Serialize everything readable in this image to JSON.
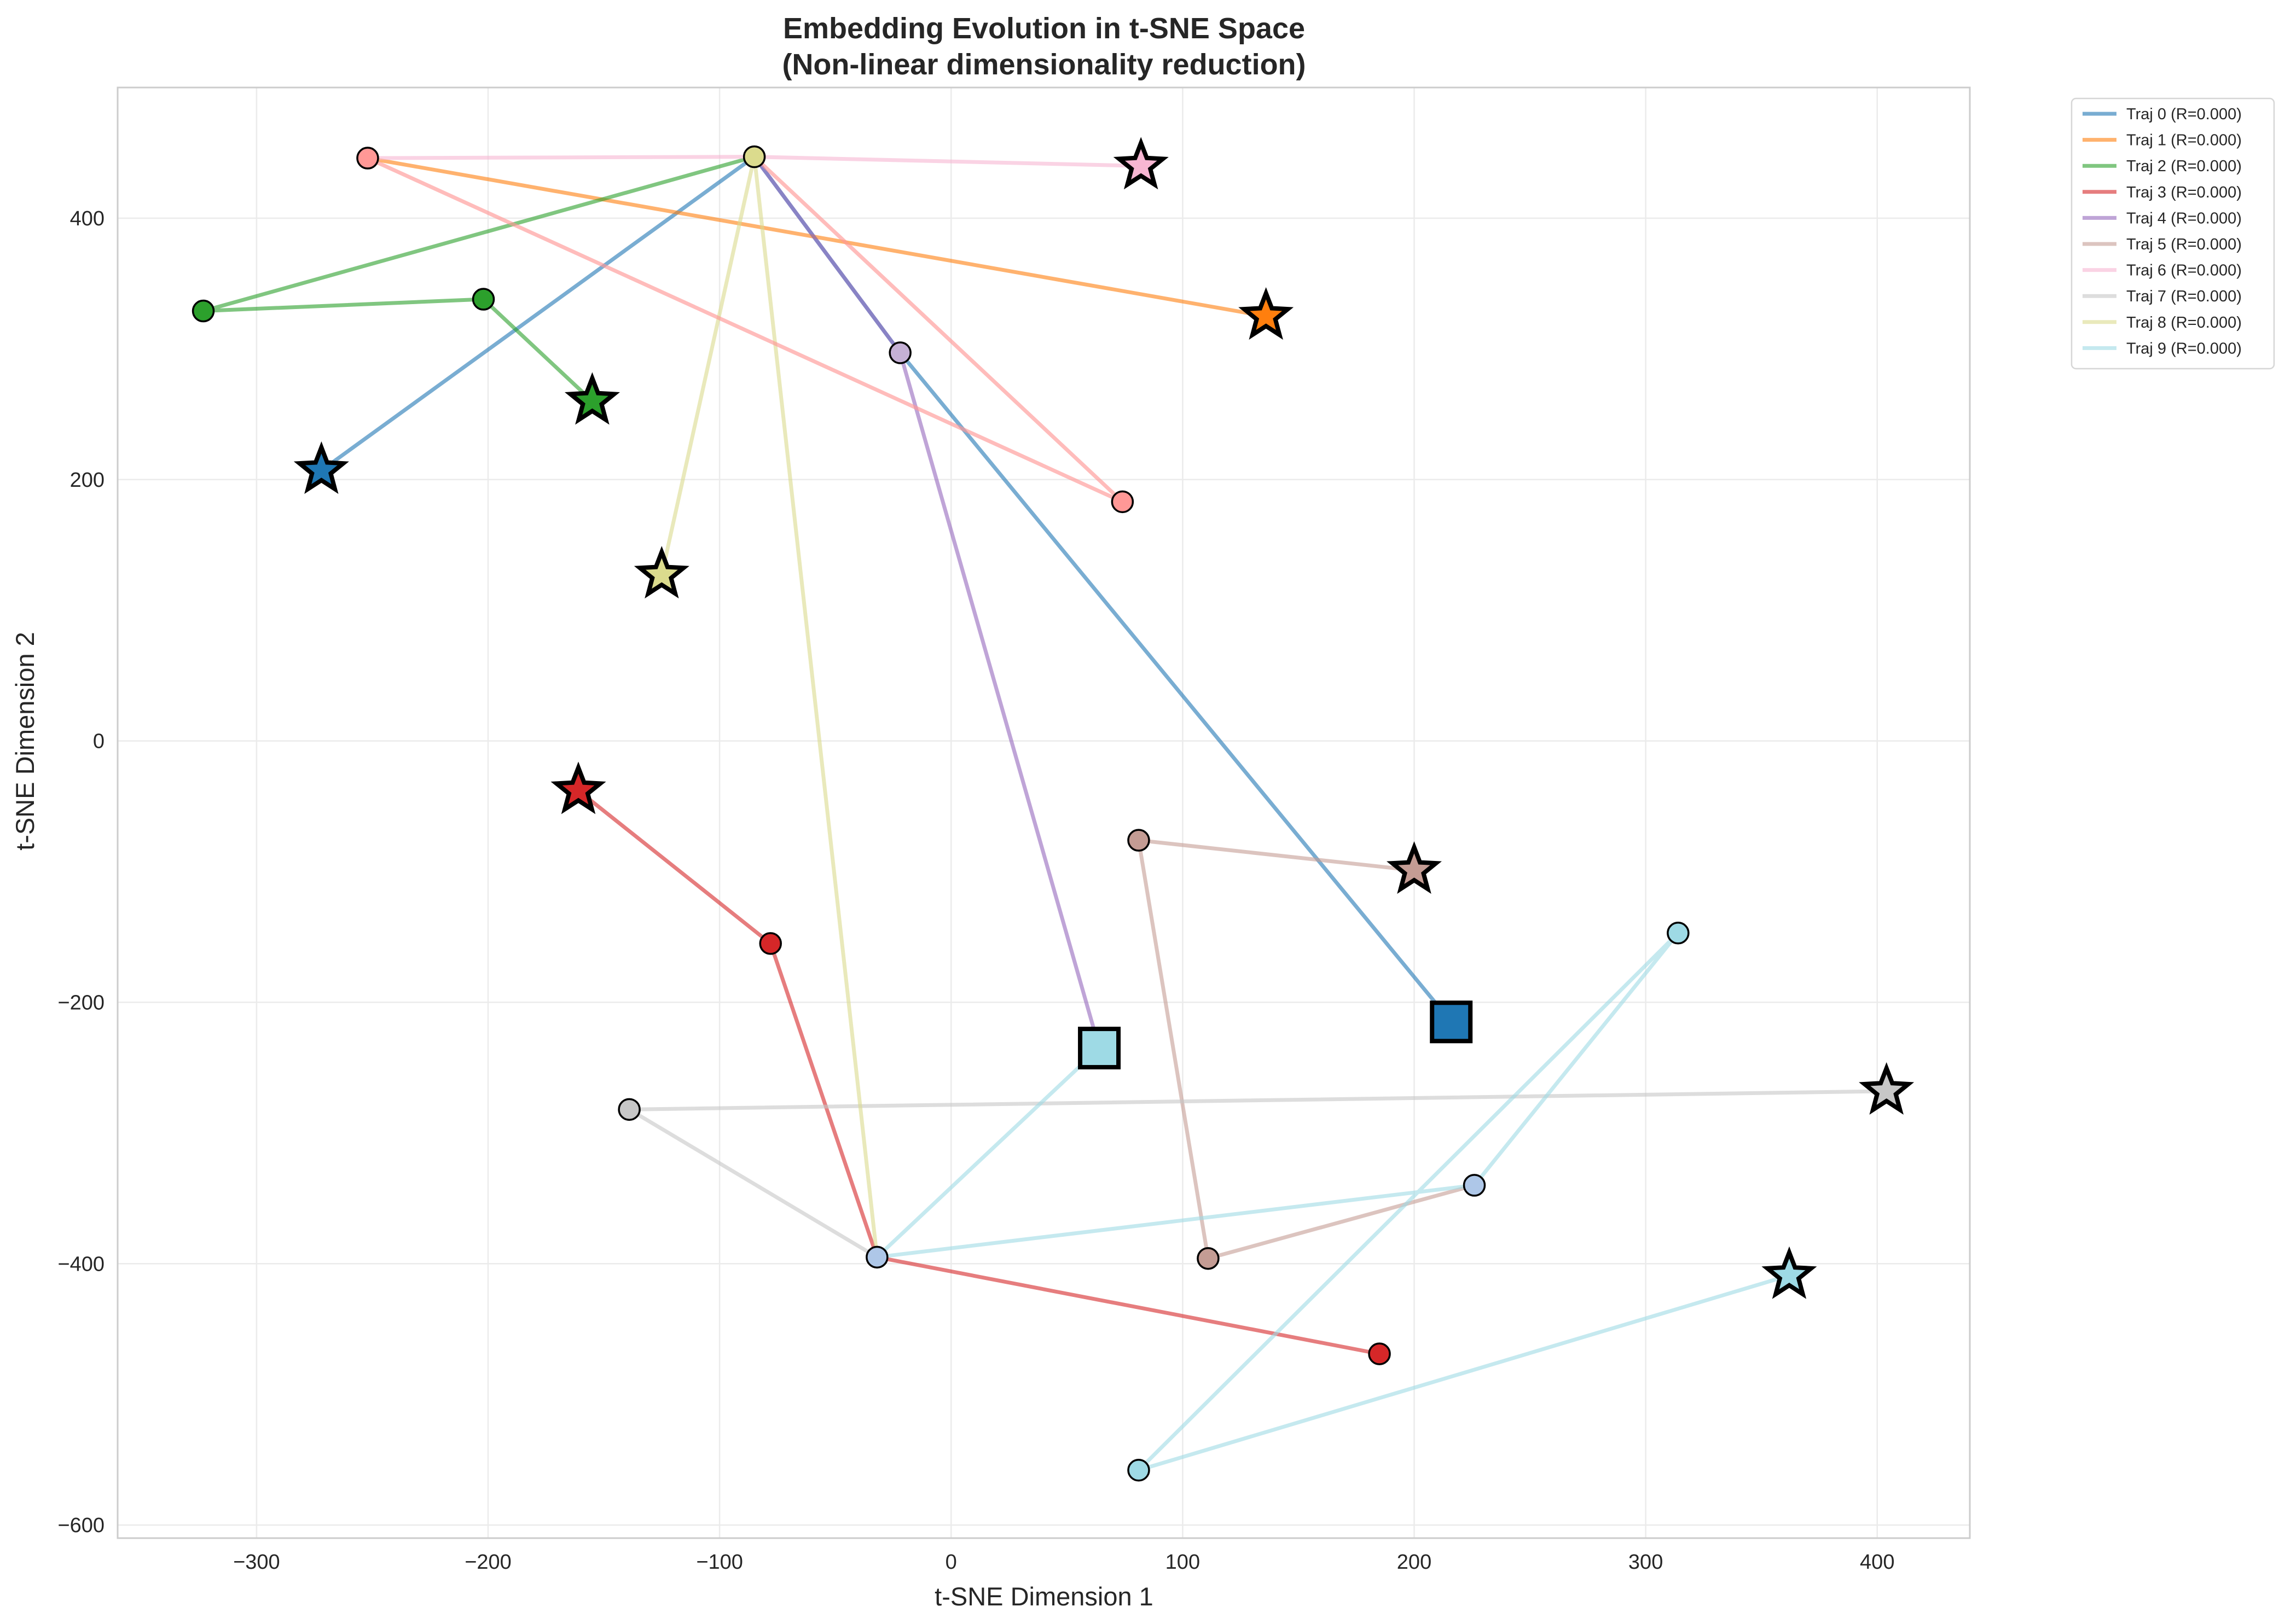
{
  "chart_data": {
    "type": "line",
    "title": [
      "Embedding Evolution in t-SNE Space",
      "(Non-linear dimensionality reduction)"
    ],
    "xlabel": "t-SNE Dimension 1",
    "ylabel": "t-SNE Dimension 2",
    "xlim": [
      -360,
      440
    ],
    "ylim": [
      -610,
      500
    ],
    "xticks": [
      -300,
      -200,
      -100,
      0,
      100,
      200,
      300,
      400
    ],
    "yticks": [
      -600,
      -400,
      -200,
      0,
      200,
      400
    ],
    "grid": true,
    "legend_position": "outside-top-right",
    "series": [
      {
        "name": "Traj 0 (R=0.000)",
        "color": "#1f77b4",
        "points": [
          [
            216,
            -215
          ],
          [
            -22,
            297
          ],
          [
            -85,
            447
          ],
          [
            -272,
            207
          ]
        ]
      },
      {
        "name": "Traj 1 (R=0.000)",
        "color": "#ff7f0e",
        "points": [
          [
            -252,
            446
          ],
          [
            136,
            325
          ]
        ]
      },
      {
        "name": "Traj 2 (R=0.000)",
        "color": "#2ca02c",
        "points": [
          [
            -85,
            447
          ],
          [
            -323,
            329
          ],
          [
            -202,
            338
          ],
          [
            -155,
            260
          ]
        ]
      },
      {
        "name": "Traj 3 (R=0.000)",
        "color": "#d62728",
        "points": [
          [
            185,
            -469
          ],
          [
            -32,
            -395
          ],
          [
            -78,
            -155
          ],
          [
            -161,
            -38
          ]
        ]
      },
      {
        "name": "Traj 4 (R=0.000)",
        "color": "#9467bd",
        "points": [
          [
            64,
            -235
          ],
          [
            -22,
            297
          ],
          [
            -85,
            447
          ]
        ]
      },
      {
        "name": "Traj 5 (R=0.000)",
        "color": "#c49c94",
        "points": [
          [
            226,
            -340
          ],
          [
            111,
            -396
          ],
          [
            81,
            -76
          ],
          [
            200,
            -99
          ]
        ]
      },
      {
        "name": "Traj 6 (R=0.000)",
        "color": "#f7b6d2",
        "points": [
          [
            -252,
            446
          ],
          [
            -85,
            447
          ],
          [
            82,
            440
          ]
        ]
      },
      {
        "name": "Traj 7 (R=0.000)",
        "color": "#c7c7c7",
        "points": [
          [
            -32,
            -395
          ],
          [
            -139,
            -282
          ],
          [
            404,
            -268
          ]
        ]
      },
      {
        "name": "Traj 8 (R=0.000)",
        "color": "#dbdb8d",
        "points": [
          [
            -32,
            -395
          ],
          [
            -85,
            447
          ],
          [
            -125,
            127
          ]
        ]
      },
      {
        "name": "Traj 9 (R=0.000)",
        "color": "#9edae5",
        "points": [
          [
            64,
            -235
          ],
          [
            -32,
            -395
          ],
          [
            226,
            -340
          ],
          [
            314,
            -147
          ],
          [
            81,
            -558
          ],
          [
            362,
            -409
          ]
        ]
      }
    ],
    "overlay_segments": [
      {
        "color": "#ff9896",
        "points": [
          [
            74,
            183
          ],
          [
            -85,
            447
          ]
        ]
      },
      {
        "color": "#ff9896",
        "points": [
          [
            -252,
            446
          ],
          [
            74,
            183
          ]
        ]
      }
    ],
    "circle_markers": [
      {
        "x": -85,
        "y": 447,
        "color": "#dbdb8d"
      },
      {
        "x": -252,
        "y": 446,
        "color": "#ff9896"
      },
      {
        "x": -22,
        "y": 297,
        "color": "#c5b0d5"
      },
      {
        "x": 74,
        "y": 183,
        "color": "#ff9896"
      },
      {
        "x": -323,
        "y": 329,
        "color": "#2ca02c"
      },
      {
        "x": -202,
        "y": 338,
        "color": "#2ca02c"
      },
      {
        "x": -78,
        "y": -155,
        "color": "#d62728"
      },
      {
        "x": 185,
        "y": -469,
        "color": "#d62728"
      },
      {
        "x": -32,
        "y": -395,
        "color": "#aec7e8"
      },
      {
        "x": 81,
        "y": -76,
        "color": "#c49c94"
      },
      {
        "x": 111,
        "y": -396,
        "color": "#c49c94"
      },
      {
        "x": 226,
        "y": -340,
        "color": "#aec7e8"
      },
      {
        "x": -139,
        "y": -282,
        "color": "#c7c7c7"
      },
      {
        "x": 314,
        "y": -147,
        "color": "#9edae5"
      },
      {
        "x": 81,
        "y": -558,
        "color": "#9edae5"
      }
    ],
    "square_markers": [
      {
        "x": 216,
        "y": -215,
        "color": "#1f77b4"
      },
      {
        "x": 64,
        "y": -235,
        "color": "#9edae5"
      }
    ],
    "star_markers": [
      {
        "x": -272,
        "y": 207,
        "color": "#1f77b4"
      },
      {
        "x": 136,
        "y": 325,
        "color": "#ff7f0e"
      },
      {
        "x": -155,
        "y": 260,
        "color": "#2ca02c"
      },
      {
        "x": -161,
        "y": -38,
        "color": "#d62728"
      },
      {
        "x": 200,
        "y": -99,
        "color": "#c49c94"
      },
      {
        "x": 82,
        "y": 440,
        "color": "#f7b6d2"
      },
      {
        "x": 404,
        "y": -268,
        "color": "#c7c7c7"
      },
      {
        "x": -125,
        "y": 127,
        "color": "#dbdb8d"
      },
      {
        "x": 362,
        "y": -409,
        "color": "#9edae5"
      }
    ]
  }
}
